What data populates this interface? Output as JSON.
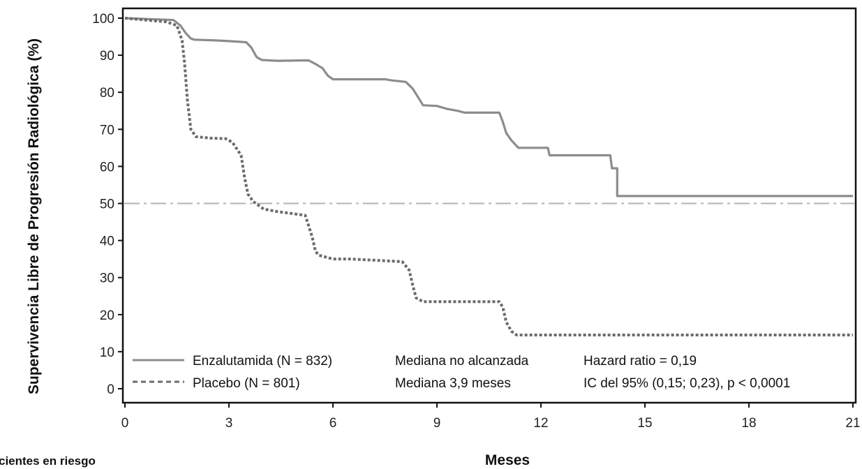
{
  "chart_data": {
    "type": "line",
    "xlabel": "Meses",
    "ylabel": "Supervivencia Libre de Progresión Radiológica (%)",
    "xlim": [
      0,
      21
    ],
    "ylim": [
      0,
      100
    ],
    "x_ticks": [
      "0",
      "3",
      "6",
      "9",
      "12",
      "15",
      "18",
      "21"
    ],
    "y_ticks": [
      "0",
      "10",
      "20",
      "30",
      "40",
      "50",
      "60",
      "70",
      "80",
      "90",
      "100"
    ],
    "grid": false,
    "reference_line": {
      "y": 50,
      "style": "dash-dot",
      "color": "#b3b3b3"
    },
    "series": [
      {
        "name": "Enzalutamida (N = 832)",
        "style": "solid",
        "color": "#8c8c8c",
        "points": [
          [
            0,
            100
          ],
          [
            1.4,
            99.5
          ],
          [
            1.6,
            98
          ],
          [
            1.75,
            96
          ],
          [
            1.9,
            94.5
          ],
          [
            2,
            94.2
          ],
          [
            2.6,
            94
          ],
          [
            3,
            93.8
          ],
          [
            3.5,
            93.5
          ],
          [
            3.65,
            92
          ],
          [
            3.8,
            89.5
          ],
          [
            3.95,
            88.7
          ],
          [
            4.4,
            88.5
          ],
          [
            5.3,
            88.6
          ],
          [
            5.5,
            87.6
          ],
          [
            5.7,
            86.5
          ],
          [
            5.85,
            84.5
          ],
          [
            6,
            83.5
          ],
          [
            7.5,
            83.5
          ],
          [
            7.7,
            83.2
          ],
          [
            8.1,
            82.8
          ],
          [
            8.3,
            81
          ],
          [
            8.5,
            78
          ],
          [
            8.6,
            76.5
          ],
          [
            9,
            76.3
          ],
          [
            9.3,
            75.5
          ],
          [
            9.6,
            75
          ],
          [
            9.8,
            74.5
          ],
          [
            10.8,
            74.5
          ],
          [
            10.9,
            72
          ],
          [
            11,
            69
          ],
          [
            11.15,
            67
          ],
          [
            11.35,
            65
          ],
          [
            12.2,
            65
          ],
          [
            12.25,
            63
          ],
          [
            14,
            63
          ],
          [
            14.05,
            59.5
          ],
          [
            14.2,
            59.5
          ],
          [
            14.2,
            52
          ],
          [
            21,
            52
          ]
        ]
      },
      {
        "name": "Placebo (N = 801)",
        "style": "dotted",
        "color": "#6b6b6b",
        "points": [
          [
            0,
            100
          ],
          [
            1.2,
            99
          ],
          [
            1.5,
            98
          ],
          [
            1.65,
            94
          ],
          [
            1.72,
            88
          ],
          [
            1.8,
            78
          ],
          [
            1.9,
            70
          ],
          [
            2.05,
            68
          ],
          [
            2.5,
            67.6
          ],
          [
            2.9,
            67.5
          ],
          [
            3.1,
            66.5
          ],
          [
            3.35,
            63
          ],
          [
            3.45,
            57
          ],
          [
            3.55,
            52.5
          ],
          [
            3.7,
            50.5
          ],
          [
            4,
            48.5
          ],
          [
            4.4,
            47.8
          ],
          [
            5.2,
            46.8
          ],
          [
            5.3,
            44
          ],
          [
            5.4,
            41
          ],
          [
            5.5,
            37
          ],
          [
            5.6,
            36
          ],
          [
            6,
            35
          ],
          [
            6.5,
            35
          ],
          [
            8,
            34.3
          ],
          [
            8.2,
            32
          ],
          [
            8.3,
            28
          ],
          [
            8.4,
            24.5
          ],
          [
            8.6,
            23.5
          ],
          [
            10.8,
            23.5
          ],
          [
            10.9,
            22
          ],
          [
            11,
            18
          ],
          [
            11.15,
            15.5
          ],
          [
            11.3,
            14.5
          ],
          [
            12,
            14.5
          ],
          [
            21,
            14.5
          ]
        ]
      }
    ],
    "legend": {
      "placement": "bottom-left",
      "rows": [
        {
          "series": "Enzalutamida (N = 832)",
          "median": "Mediana no alcanzada",
          "stat": "Hazard ratio = 0,19"
        },
        {
          "series": "Placebo (N = 801)",
          "median": "Mediana 3,9 meses",
          "stat": "IC del 95%  (0,15; 0,23), p < 0,0001"
        }
      ]
    }
  },
  "footer": {
    "at_risk_label": "cientes en riesgo"
  }
}
